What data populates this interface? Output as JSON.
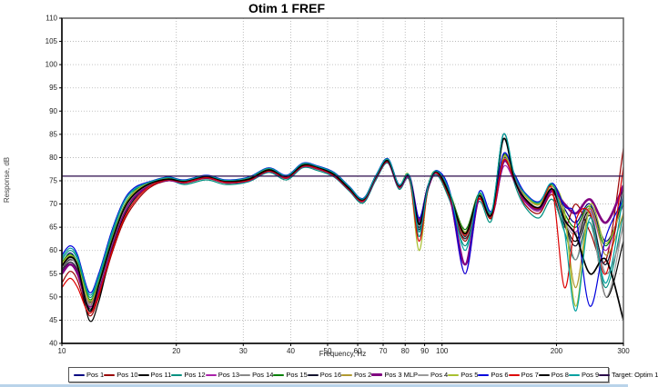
{
  "window": {
    "bottom_edge_color": "#b9d3ea"
  },
  "chart_data": {
    "type": "line",
    "title": "Otim 1 FREF",
    "xlabel": "Frequency, Hz",
    "ylabel": "Response, dB",
    "x_scale": "log",
    "xlim": [
      10,
      300
    ],
    "ylim": [
      40,
      110
    ],
    "x_ticks": [
      10,
      20,
      30,
      40,
      50,
      60,
      70,
      80,
      90,
      100,
      200,
      300
    ],
    "x_gridlines": [
      20,
      30,
      40,
      50,
      60,
      70,
      80,
      90,
      100,
      200
    ],
    "y_ticks": [
      110,
      105,
      100,
      95,
      90,
      85,
      80,
      75,
      70,
      65,
      60,
      55,
      50,
      45,
      40
    ],
    "y_gridlines": [
      105,
      100,
      95,
      90,
      85,
      80,
      75,
      70,
      65,
      60,
      55,
      50,
      45
    ],
    "grid": true,
    "grid_color": "#b0b0b0",
    "border_color": "#606060",
    "legend_position": "bottom",
    "frequencies": [
      10,
      10.5,
      11,
      11.8,
      12.5,
      13.5,
      14.5,
      15.5,
      17,
      19,
      21,
      24,
      27,
      31,
      35,
      39,
      43,
      47,
      52,
      57,
      62,
      67,
      72,
      77,
      82,
      87,
      92,
      97,
      105,
      115,
      125,
      135,
      145,
      155,
      165,
      180,
      195,
      210,
      225,
      245,
      270,
      300
    ],
    "series": [
      {
        "name": "Pos 1",
        "color": "#000080",
        "width": 1.2,
        "values": [
          57,
          59.5,
          57,
          49,
          53,
          62,
          69,
          72.5,
          74.5,
          75.5,
          75,
          76,
          75,
          75.5,
          77.5,
          76,
          78.5,
          78,
          76.5,
          73.5,
          71,
          76,
          79.5,
          74,
          76,
          66,
          74,
          77,
          72,
          64,
          72,
          68,
          80,
          76,
          72,
          70,
          74,
          69,
          66,
          70,
          62,
          70
        ]
      },
      {
        "name": "Pos 10",
        "color": "#990000",
        "width": 1.2,
        "values": [
          53,
          55.5,
          53.5,
          46,
          50,
          59,
          66,
          70,
          73.5,
          75,
          74.5,
          75.5,
          74.5,
          75,
          77,
          75.5,
          78,
          77.5,
          76,
          73,
          70.5,
          75.5,
          79,
          73.5,
          75.5,
          64,
          73.5,
          76.5,
          71,
          62,
          71,
          67,
          79,
          75,
          70,
          68,
          72,
          65,
          70,
          64,
          58,
          82
        ]
      },
      {
        "name": "Pos 11",
        "color": "#000000",
        "width": 1.2,
        "values": [
          56,
          58,
          56,
          45,
          49,
          60,
          67,
          71,
          74,
          75,
          74.8,
          75.8,
          74.8,
          75.2,
          77.2,
          75.8,
          78.2,
          77.8,
          76.2,
          73.2,
          70.8,
          75.8,
          79.2,
          73.8,
          75.8,
          65,
          73.8,
          76.8,
          71.5,
          63,
          71.5,
          67.5,
          85,
          75.5,
          71,
          69,
          73,
          66,
          62,
          68,
          50,
          62
        ]
      },
      {
        "name": "Pos 12",
        "color": "#009080",
        "width": 1.2,
        "values": [
          58,
          60,
          58,
          50,
          54,
          63,
          70,
          73,
          74.2,
          75.2,
          74.2,
          75.2,
          74.2,
          74.8,
          76.8,
          75.2,
          77.8,
          77.2,
          75.8,
          72.8,
          70.2,
          75.2,
          78.8,
          73.2,
          75.2,
          63,
          73.2,
          76.2,
          70.5,
          61,
          70.5,
          66.5,
          84,
          74.5,
          69.5,
          67,
          71,
          64,
          58,
          66,
          52,
          68
        ]
      },
      {
        "name": "Pos 13",
        "color": "#aa22aa",
        "width": 1.2,
        "values": [
          55,
          57,
          55,
          47,
          51,
          60.5,
          67.5,
          71.5,
          74,
          75,
          74.6,
          75.6,
          74.6,
          75,
          77,
          75.6,
          78,
          77.6,
          76,
          73,
          70.6,
          75.6,
          79,
          73.6,
          75.6,
          67,
          73.6,
          76.6,
          71.2,
          55,
          71.2,
          67.2,
          78,
          74.8,
          70.5,
          68.5,
          72.5,
          67,
          64,
          69,
          60,
          72
        ]
      },
      {
        "name": "Pos 14",
        "color": "#888888",
        "width": 1.2,
        "values": [
          56.5,
          58.5,
          56.5,
          48.5,
          52.5,
          61.5,
          68.5,
          72,
          74.3,
          75.3,
          74.9,
          75.9,
          74.9,
          75.3,
          77.3,
          75.9,
          78.3,
          77.9,
          76.3,
          73.3,
          70.9,
          75.9,
          79.3,
          73.9,
          75.9,
          65.5,
          73.9,
          76.9,
          71.7,
          63.5,
          71.7,
          67.7,
          79.5,
          75.2,
          71.2,
          69.2,
          73.2,
          66.5,
          58,
          68.5,
          55,
          65
        ]
      },
      {
        "name": "Pos 15",
        "color": "#008000",
        "width": 1.2,
        "values": [
          57.5,
          59.2,
          57.2,
          49.5,
          53.2,
          62.2,
          69.2,
          72.7,
          74.6,
          75.6,
          75.1,
          76.1,
          75.1,
          75.6,
          77.6,
          76.1,
          78.6,
          78.1,
          76.6,
          73.6,
          71.1,
          76.1,
          79.6,
          74.1,
          76.1,
          66.5,
          74.1,
          77.1,
          72.2,
          64.5,
          72.2,
          68.2,
          80.5,
          76.2,
          72.2,
          70.2,
          74.2,
          68,
          65,
          69.5,
          61,
          71
        ]
      },
      {
        "name": "Pos 16",
        "color": "#14142e",
        "width": 1.2,
        "values": [
          55.5,
          57.5,
          55.5,
          47.5,
          51.5,
          61,
          68,
          71.8,
          74.1,
          75.1,
          74.7,
          75.7,
          74.7,
          75.1,
          77.1,
          75.7,
          78.1,
          77.7,
          76.1,
          73.1,
          70.7,
          75.7,
          79.1,
          73.7,
          75.7,
          64.5,
          73.7,
          76.7,
          71.3,
          62.5,
          71.3,
          67.3,
          79.8,
          75,
          70.8,
          68.8,
          72.8,
          65.5,
          61,
          67.5,
          57,
          74
        ]
      },
      {
        "name": "Pos 2",
        "color": "#b09a30",
        "width": 1.2,
        "values": [
          56.8,
          58.8,
          56.8,
          48.8,
          52.8,
          61.8,
          68.8,
          72.3,
          74.4,
          75.4,
          75,
          76,
          75,
          75.4,
          77.4,
          76,
          78.4,
          78,
          76.4,
          73.4,
          71,
          76,
          79.4,
          74,
          76,
          65.8,
          74,
          77,
          71.8,
          63.8,
          71.8,
          67.8,
          80.2,
          75.8,
          71.8,
          69.8,
          73.8,
          67,
          52,
          69,
          59,
          68
        ]
      },
      {
        "name": "Pos 3 MLP",
        "color": "#800080",
        "width": 2.6,
        "values": [
          55,
          57,
          55,
          48,
          52,
          61,
          68,
          71.5,
          74,
          75.2,
          74.8,
          75.8,
          74.8,
          75.2,
          77.2,
          75.8,
          78.2,
          77.8,
          76.2,
          73.2,
          70.8,
          75.8,
          79.2,
          73.8,
          75.8,
          66.5,
          73.8,
          76.8,
          71.5,
          57,
          71.5,
          67.5,
          79,
          75.5,
          71,
          69,
          73,
          70,
          68,
          71,
          66,
          74
        ]
      },
      {
        "name": "Pos 4",
        "color": "#9a9a9a",
        "width": 1.2,
        "values": [
          56.2,
          58.2,
          56.2,
          48.2,
          52.2,
          61.2,
          68.2,
          71.9,
          74.2,
          75.2,
          74.8,
          75.8,
          74.8,
          75.2,
          77.2,
          75.8,
          78.2,
          77.8,
          76.2,
          73.2,
          70.8,
          75.8,
          79.2,
          73.8,
          75.8,
          65.2,
          73.8,
          76.8,
          71.4,
          62.8,
          71.4,
          67.4,
          79.6,
          75.3,
          71.3,
          69.3,
          73.3,
          66.2,
          63.5,
          68.2,
          50,
          66
        ]
      },
      {
        "name": "Pos 5",
        "color": "#a8c030",
        "width": 1.2,
        "values": [
          57.2,
          59,
          57,
          49.2,
          53,
          62,
          69,
          72.6,
          74.5,
          75.5,
          75,
          76,
          75,
          75.5,
          77.5,
          76,
          78.5,
          78,
          76.5,
          73.5,
          71,
          76,
          79.5,
          74,
          76,
          60,
          74,
          77,
          72,
          64,
          72,
          68,
          80,
          76,
          72,
          70,
          74,
          68.5,
          48,
          69.8,
          61.5,
          70.5
        ]
      },
      {
        "name": "Pos 6",
        "color": "#0000dd",
        "width": 1.2,
        "values": [
          59,
          61,
          59,
          51,
          55,
          64,
          70.5,
          73.5,
          74.8,
          75.8,
          75.2,
          76.2,
          75.2,
          75.8,
          77.8,
          76.2,
          78.8,
          78.2,
          76.8,
          73.8,
          71.2,
          76.2,
          79.8,
          74.2,
          76.2,
          67,
          74.2,
          77.2,
          72.5,
          55,
          72.5,
          68.5,
          80.8,
          76.5,
          72.5,
          70.5,
          74.5,
          69.5,
          67,
          48,
          63,
          71
        ]
      },
      {
        "name": "Pos 7",
        "color": "#dd0000",
        "width": 1.2,
        "values": [
          52,
          54,
          52,
          46.5,
          50.5,
          59.5,
          66.5,
          70.5,
          73.8,
          75.2,
          74.7,
          75.7,
          74.7,
          75.1,
          77.1,
          75.7,
          78.1,
          77.7,
          76.1,
          73.1,
          70.7,
          75.7,
          79.1,
          73.7,
          75.7,
          62,
          73.7,
          76.7,
          71.2,
          63.2,
          71.2,
          67.2,
          79.4,
          75.1,
          71.1,
          69.1,
          73.1,
          52,
          66.5,
          68,
          55,
          78
        ]
      },
      {
        "name": "Pos 8",
        "color": "#000000",
        "width": 1.7,
        "values": [
          56.6,
          58.6,
          56.6,
          47,
          52.6,
          61.6,
          68.6,
          72.1,
          74.35,
          75.35,
          74.95,
          75.95,
          74.95,
          75.35,
          77.35,
          75.95,
          78.35,
          77.95,
          76.35,
          73.35,
          70.95,
          75.95,
          79.35,
          73.95,
          75.95,
          65.6,
          73.95,
          76.95,
          71.75,
          63.6,
          71.75,
          67.75,
          84,
          75.25,
          71.25,
          69.25,
          73.25,
          66.6,
          63.25,
          55,
          58,
          45
        ]
      },
      {
        "name": "Pos 9",
        "color": "#00a0a0",
        "width": 1.2,
        "values": [
          58.5,
          60.5,
          58.5,
          50.5,
          54.5,
          63.5,
          70.2,
          73.2,
          74.7,
          75.7,
          75.1,
          76.1,
          75.1,
          75.7,
          77.7,
          76.1,
          78.7,
          78.1,
          76.7,
          73.7,
          71.1,
          76.1,
          79.7,
          74.1,
          76.1,
          64,
          74.1,
          77.1,
          72.3,
          60,
          72.3,
          68.3,
          85,
          76.3,
          72.3,
          70.3,
          74.3,
          64,
          47,
          67,
          53,
          72
        ]
      },
      {
        "name": "Target: Optim 1",
        "color": "#2a0a4a",
        "width": 1.3,
        "values": [
          76,
          76,
          76,
          76,
          76,
          76,
          76,
          76,
          76,
          76,
          76,
          76,
          76,
          76,
          76,
          76,
          76,
          76,
          76,
          76,
          76,
          76,
          76,
          76,
          76,
          76,
          76,
          76,
          76,
          76,
          76,
          76,
          76,
          76,
          76,
          76,
          76,
          76,
          76,
          76,
          76,
          76
        ]
      }
    ]
  }
}
